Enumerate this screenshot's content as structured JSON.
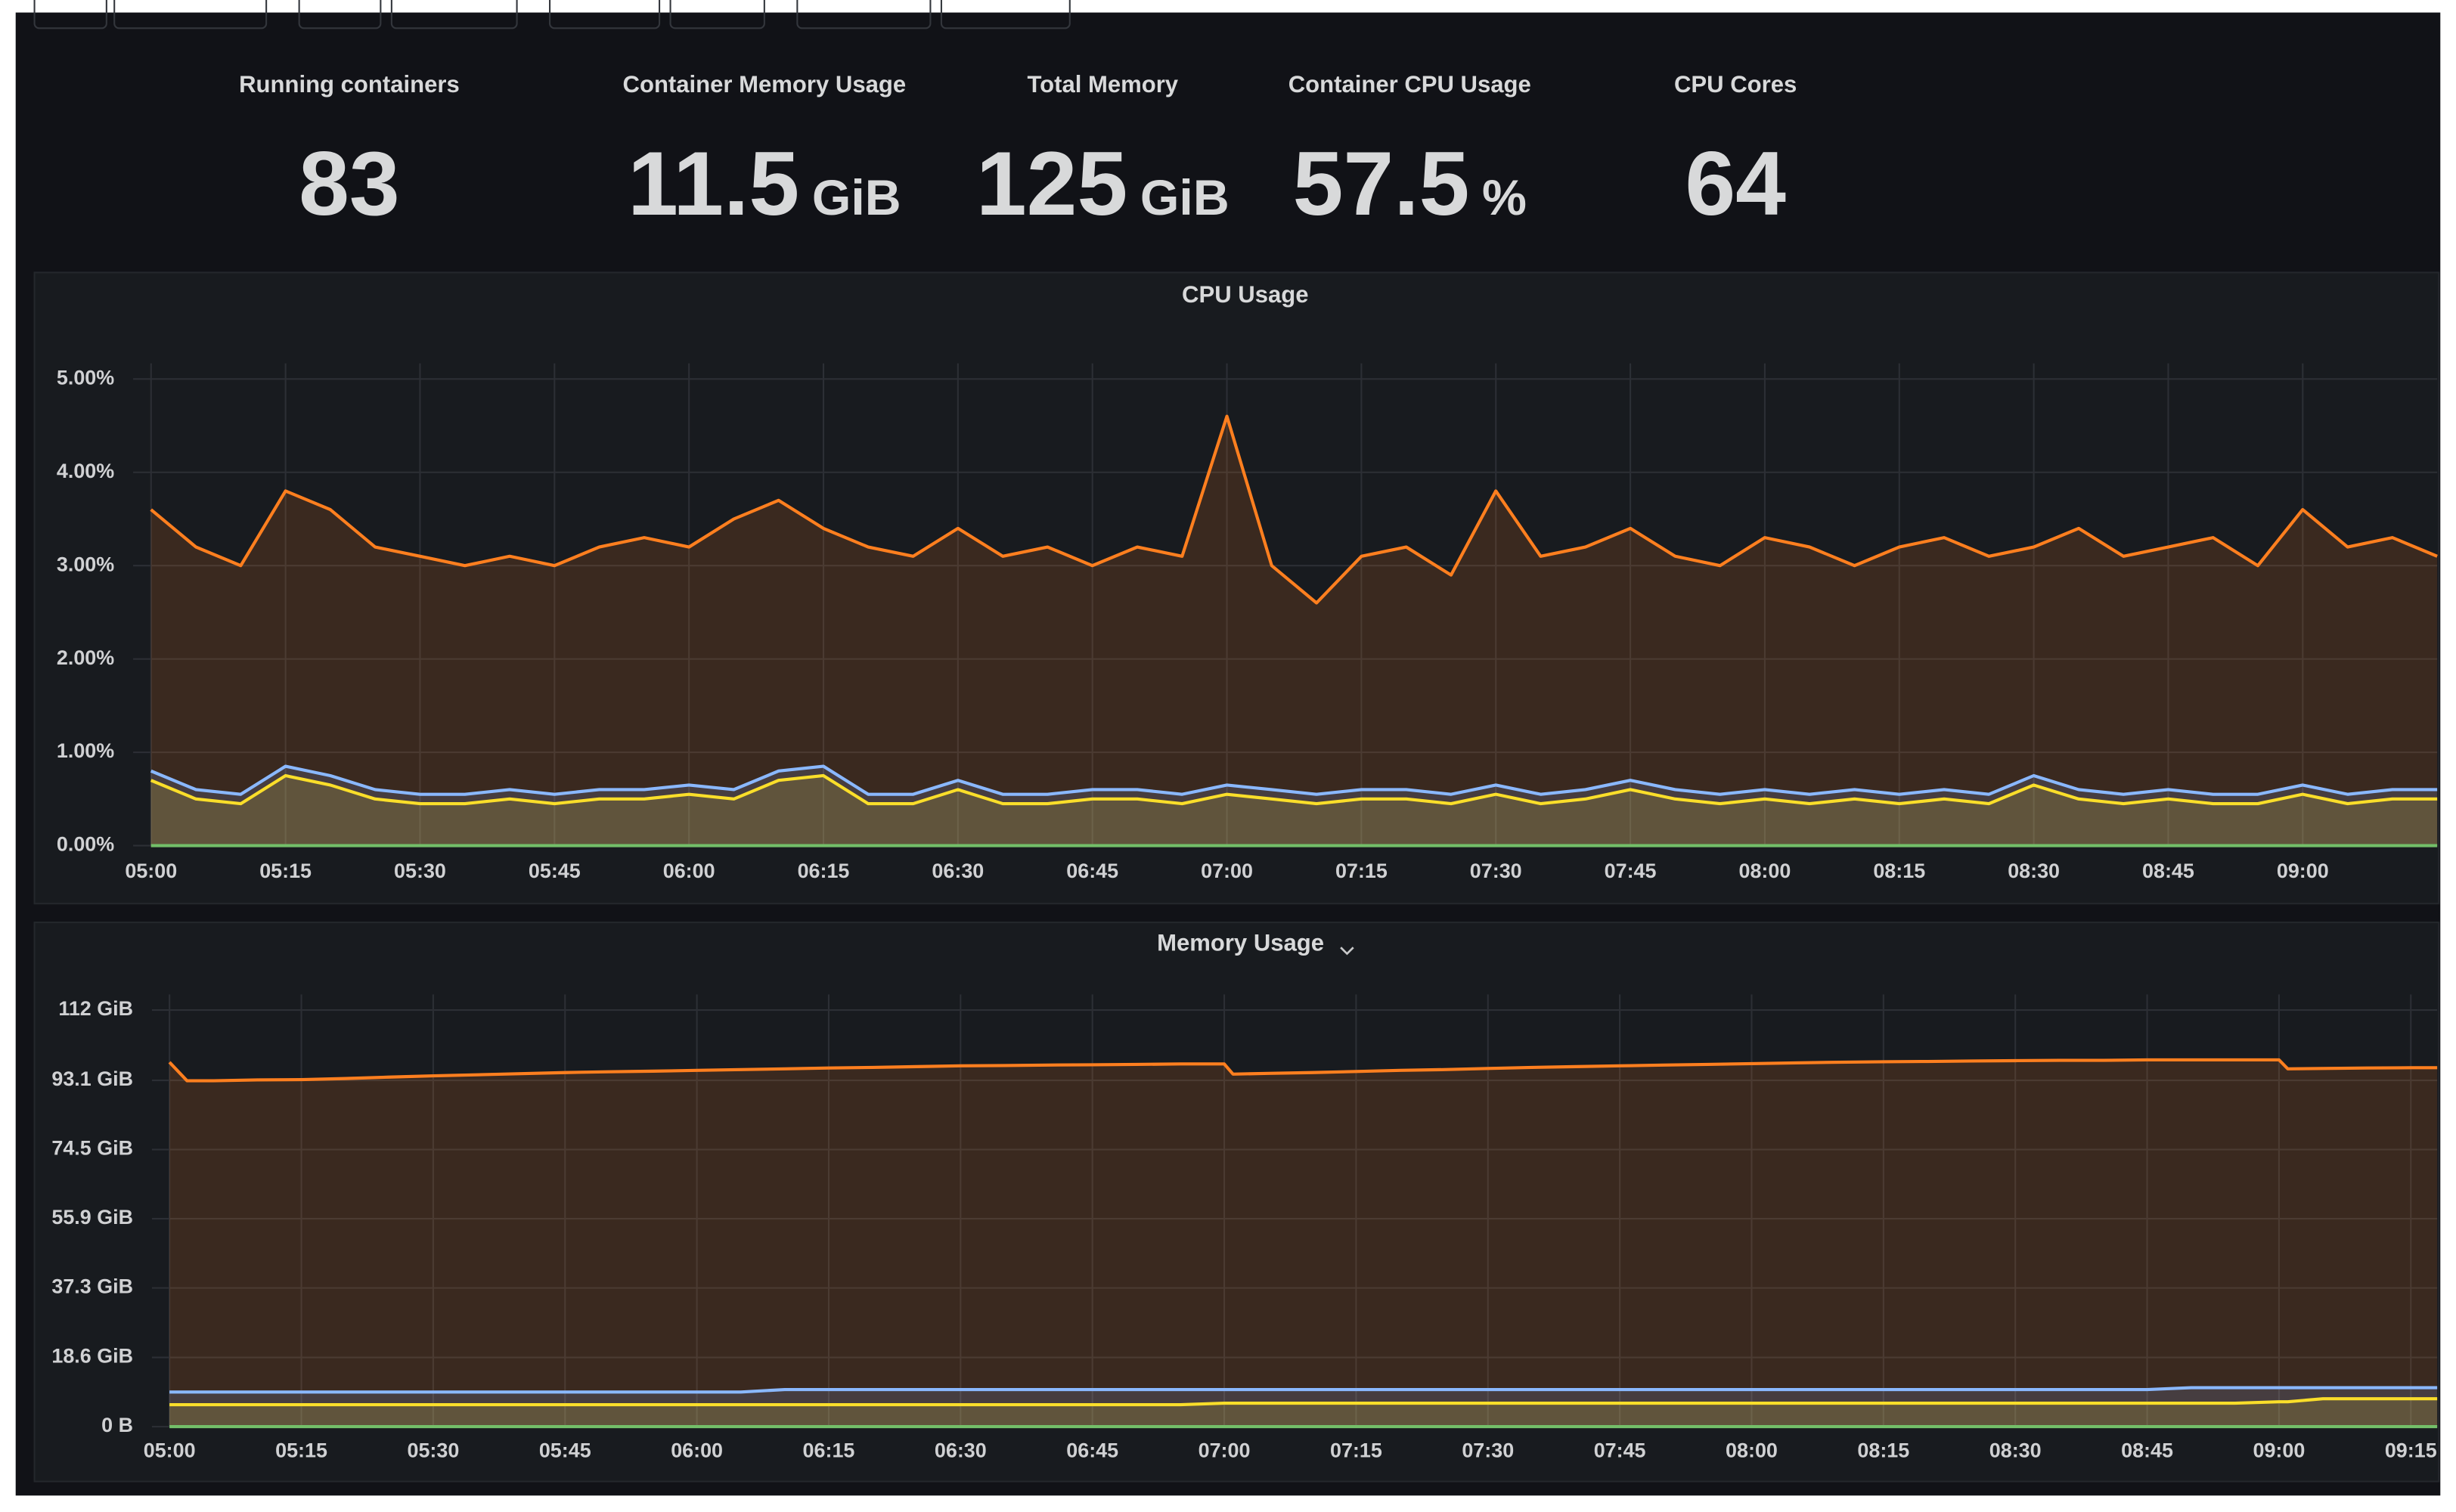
{
  "stats": [
    {
      "label": "Running containers",
      "value": 83
    },
    {
      "label": "Container Memory Usage",
      "value": 11.5,
      "unit": "GiB"
    },
    {
      "label": "Total Memory",
      "value": 125,
      "unit": "GiB"
    },
    {
      "label": "Container CPU Usage",
      "value": 57.5,
      "unit": "%"
    },
    {
      "label": "CPU Cores",
      "value": 64
    }
  ],
  "chart_data": [
    {
      "type": "line",
      "title": "CPU Usage",
      "x": [
        "05:00",
        "05:05",
        "05:10",
        "05:15",
        "05:20",
        "05:25",
        "05:30",
        "05:35",
        "05:40",
        "05:45",
        "05:50",
        "05:55",
        "06:00",
        "06:05",
        "06:10",
        "06:15",
        "06:20",
        "06:25",
        "06:30",
        "06:35",
        "06:40",
        "06:45",
        "06:50",
        "06:55",
        "07:00",
        "07:05",
        "07:10",
        "07:15",
        "07:20",
        "07:25",
        "07:30",
        "07:35",
        "07:40",
        "07:45",
        "07:50",
        "07:55",
        "08:00",
        "08:05",
        "08:10",
        "08:15",
        "08:20",
        "08:25",
        "08:30",
        "08:35",
        "08:40",
        "08:45",
        "08:50",
        "08:55",
        "09:00",
        "09:05",
        "09:10",
        "09:15"
      ],
      "xlim": [
        "04:58",
        "09:15"
      ],
      "xticks": [
        "05:00",
        "05:15",
        "05:30",
        "05:45",
        "06:00",
        "06:15",
        "06:30",
        "06:45",
        "07:00",
        "07:15",
        "07:30",
        "07:45",
        "08:00",
        "08:15",
        "08:30",
        "08:45",
        "09:00"
      ],
      "ylim": [
        0,
        5
      ],
      "yticks": [
        {
          "value": 0,
          "label": "0.00%"
        },
        {
          "value": 1,
          "label": "1.00%"
        },
        {
          "value": 2,
          "label": "2.00%"
        },
        {
          "value": 3,
          "label": "3.00%"
        },
        {
          "value": 4,
          "label": "4.00%"
        },
        {
          "value": 5,
          "label": "5.00%"
        }
      ],
      "grid": true,
      "series": [
        {
          "color": "#ff7f1f",
          "values": [
            3.6,
            3.2,
            3.0,
            3.8,
            3.6,
            3.2,
            3.1,
            3.0,
            3.1,
            3.0,
            3.2,
            3.3,
            3.2,
            3.5,
            3.7,
            3.4,
            3.2,
            3.1,
            3.4,
            3.1,
            3.2,
            3.0,
            3.2,
            3.1,
            4.6,
            3.0,
            2.6,
            3.1,
            3.2,
            2.9,
            3.8,
            3.1,
            3.2,
            3.4,
            3.1,
            3.0,
            3.3,
            3.2,
            3.0,
            3.2,
            3.3,
            3.1,
            3.2,
            3.4,
            3.1,
            3.2,
            3.3,
            3.0,
            3.6,
            3.2,
            3.3,
            3.1
          ]
        },
        {
          "color": "#8ab8ff",
          "values": [
            0.8,
            0.6,
            0.55,
            0.85,
            0.75,
            0.6,
            0.55,
            0.55,
            0.6,
            0.55,
            0.6,
            0.6,
            0.65,
            0.6,
            0.8,
            0.85,
            0.55,
            0.55,
            0.7,
            0.55,
            0.55,
            0.6,
            0.6,
            0.55,
            0.65,
            0.6,
            0.55,
            0.6,
            0.6,
            0.55,
            0.65,
            0.55,
            0.6,
            0.7,
            0.6,
            0.55,
            0.6,
            0.55,
            0.6,
            0.55,
            0.6,
            0.55,
            0.75,
            0.6,
            0.55,
            0.6,
            0.55,
            0.55,
            0.65,
            0.55,
            0.6,
            0.6
          ]
        },
        {
          "color": "#fade2a",
          "values": [
            0.7,
            0.5,
            0.45,
            0.75,
            0.65,
            0.5,
            0.45,
            0.45,
            0.5,
            0.45,
            0.5,
            0.5,
            0.55,
            0.5,
            0.7,
            0.75,
            0.45,
            0.45,
            0.6,
            0.45,
            0.45,
            0.5,
            0.5,
            0.45,
            0.55,
            0.5,
            0.45,
            0.5,
            0.5,
            0.45,
            0.55,
            0.45,
            0.5,
            0.6,
            0.5,
            0.45,
            0.5,
            0.45,
            0.5,
            0.45,
            0.5,
            0.45,
            0.65,
            0.5,
            0.45,
            0.5,
            0.45,
            0.45,
            0.55,
            0.45,
            0.5,
            0.5
          ]
        },
        {
          "color": "#73bf69",
          "values": [
            0,
            0,
            0,
            0,
            0,
            0,
            0,
            0,
            0,
            0,
            0,
            0,
            0,
            0,
            0,
            0,
            0,
            0,
            0,
            0,
            0,
            0,
            0,
            0,
            0,
            0,
            0,
            0,
            0,
            0,
            0,
            0,
            0,
            0,
            0,
            0,
            0,
            0,
            0,
            0,
            0,
            0,
            0,
            0,
            0,
            0,
            0,
            0,
            0,
            0,
            0,
            0
          ]
        }
      ]
    },
    {
      "type": "line",
      "title": "Memory Usage",
      "x": [
        "05:00",
        "05:02",
        "05:05",
        "05:10",
        "05:15",
        "05:20",
        "05:25",
        "05:30",
        "05:35",
        "05:40",
        "05:45",
        "05:50",
        "05:55",
        "06:00",
        "06:05",
        "06:10",
        "06:15",
        "06:20",
        "06:25",
        "06:30",
        "06:35",
        "06:40",
        "06:45",
        "06:50",
        "06:55",
        "07:00",
        "07:01",
        "07:05",
        "07:10",
        "07:15",
        "07:20",
        "07:25",
        "07:30",
        "07:35",
        "07:40",
        "07:45",
        "07:50",
        "07:55",
        "08:00",
        "08:05",
        "08:10",
        "08:15",
        "08:20",
        "08:25",
        "08:30",
        "08:35",
        "08:40",
        "08:45",
        "08:50",
        "08:55",
        "09:00",
        "09:01",
        "09:05",
        "09:10",
        "09:15",
        "09:18"
      ],
      "xlim": [
        "04:58",
        "09:18"
      ],
      "xticks": [
        "05:00",
        "05:15",
        "05:30",
        "05:45",
        "06:00",
        "06:15",
        "06:30",
        "06:45",
        "07:00",
        "07:15",
        "07:30",
        "07:45",
        "08:00",
        "08:15",
        "08:30",
        "08:45",
        "09:00",
        "09:15"
      ],
      "ylim": [
        0,
        112
      ],
      "yticks": [
        {
          "value": 0,
          "label": "0 B"
        },
        {
          "value": 18.6,
          "label": "18.6 GiB"
        },
        {
          "value": 37.3,
          "label": "37.3 GiB"
        },
        {
          "value": 55.9,
          "label": "55.9 GiB"
        },
        {
          "value": 74.5,
          "label": "74.5 GiB"
        },
        {
          "value": 93.1,
          "label": "93.1 GiB"
        },
        {
          "value": 112,
          "label": "112 GiB"
        }
      ],
      "grid": true,
      "series": [
        {
          "color": "#ff7f1f",
          "values": [
            98,
            93,
            93,
            93.2,
            93.3,
            93.6,
            94,
            94.3,
            94.6,
            94.9,
            95.2,
            95.4,
            95.6,
            95.8,
            96,
            96.2,
            96.4,
            96.6,
            96.8,
            97,
            97.1,
            97.2,
            97.3,
            97.4,
            97.5,
            97.5,
            94.8,
            95,
            95.2,
            95.5,
            95.8,
            96,
            96.3,
            96.6,
            96.8,
            97,
            97.2,
            97.4,
            97.6,
            97.8,
            98,
            98.1,
            98.2,
            98.3,
            98.4,
            98.5,
            98.5,
            98.6,
            98.6,
            98.6,
            98.6,
            96.2,
            96.3,
            96.4,
            96.5,
            96.5
          ]
        },
        {
          "color": "#8ab8ff",
          "values": [
            9.3,
            9.3,
            9.3,
            9.3,
            9.3,
            9.3,
            9.3,
            9.3,
            9.3,
            9.3,
            9.3,
            9.3,
            9.3,
            9.3,
            9.3,
            10,
            10,
            10,
            10,
            10,
            10,
            10,
            10,
            10,
            10,
            10,
            10,
            10,
            10,
            10,
            10,
            10,
            10,
            10,
            10,
            10,
            10,
            10,
            10,
            10,
            10,
            10,
            10,
            10,
            10,
            10,
            10,
            10,
            10.5,
            10.5,
            10.5,
            10.5,
            10.5,
            10.5,
            10.5,
            10.5
          ]
        },
        {
          "color": "#fade2a",
          "values": [
            5.9,
            5.9,
            5.9,
            5.9,
            5.9,
            5.9,
            5.9,
            5.9,
            5.9,
            5.9,
            5.9,
            5.9,
            5.9,
            5.9,
            5.9,
            5.9,
            5.9,
            5.9,
            5.9,
            5.9,
            5.9,
            5.9,
            5.9,
            5.9,
            5.9,
            6.3,
            6.3,
            6.3,
            6.3,
            6.3,
            6.3,
            6.3,
            6.3,
            6.3,
            6.3,
            6.3,
            6.3,
            6.3,
            6.3,
            6.3,
            6.3,
            6.3,
            6.3,
            6.3,
            6.3,
            6.3,
            6.3,
            6.3,
            6.3,
            6.3,
            6.7,
            6.7,
            7.5,
            7.5,
            7.5,
            7.5
          ]
        },
        {
          "color": "#73bf69",
          "values": [
            0,
            0,
            0,
            0,
            0,
            0,
            0,
            0,
            0,
            0,
            0,
            0,
            0,
            0,
            0,
            0,
            0,
            0,
            0,
            0,
            0,
            0,
            0,
            0,
            0,
            0,
            0,
            0,
            0,
            0,
            0,
            0,
            0,
            0,
            0,
            0,
            0,
            0,
            0,
            0,
            0,
            0,
            0,
            0,
            0,
            0,
            0,
            0,
            0,
            0,
            0,
            0,
            0,
            0,
            0,
            0
          ]
        }
      ]
    }
  ]
}
